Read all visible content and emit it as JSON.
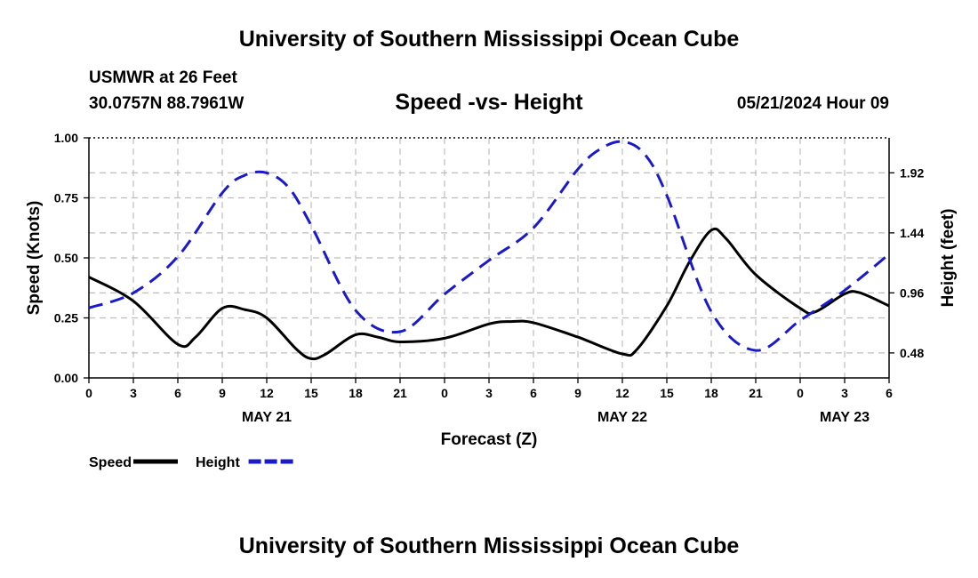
{
  "header": {
    "title": "University of Southern Mississippi Ocean Cube",
    "station": "USMWR at 26 Feet",
    "coordinates": "30.0757N  88.7961W",
    "subtitle": "Speed -vs- Height",
    "datetime": "05/21/2024 Hour 09"
  },
  "footer": {
    "title": "University of Southern Mississippi Ocean Cube"
  },
  "chart_data": {
    "type": "line",
    "title": "Speed -vs- Height",
    "xlabel": "Forecast (Z)",
    "ylabel_left": "Speed (Knots)",
    "ylabel_right": "Height (feet)",
    "x_hours_range": [
      0,
      54
    ],
    "x_tick_hours": [
      0,
      3,
      6,
      9,
      12,
      15,
      18,
      21,
      24,
      27,
      30,
      33,
      36,
      39,
      42,
      45,
      48,
      51,
      54
    ],
    "x_tick_labels": [
      "0",
      "3",
      "6",
      "9",
      "12",
      "15",
      "18",
      "21",
      "0",
      "3",
      "6",
      "9",
      "12",
      "15",
      "18",
      "21",
      "0",
      "3",
      "6"
    ],
    "date_labels": [
      {
        "hour": 12,
        "label": "MAY 21"
      },
      {
        "hour": 36,
        "label": "MAY 22"
      },
      {
        "hour": 51,
        "label": "MAY 23"
      }
    ],
    "ylim_left": [
      0,
      1
    ],
    "y_left_ticks": [
      {
        "value": 0.0,
        "label": "0.00"
      },
      {
        "value": 0.25,
        "label": "0.25"
      },
      {
        "value": 0.5,
        "label": "0.50"
      },
      {
        "value": 0.75,
        "label": "0.75"
      },
      {
        "value": 1.0,
        "label": "1.00"
      }
    ],
    "ylim_right": [
      0.28,
      2.2
    ],
    "y_right_ticks": [
      {
        "value": 0.48,
        "label": "0.48"
      },
      {
        "value": 0.96,
        "label": "0.96"
      },
      {
        "value": 1.44,
        "label": "1.44"
      },
      {
        "value": 1.92,
        "label": "1.92"
      }
    ],
    "grid": true,
    "legend_position": "bottom-left",
    "series": [
      {
        "name": "Speed",
        "axis": "left",
        "color": "#000000",
        "style": "solid",
        "x": [
          0,
          3,
          6,
          7.2,
          9,
          10.5,
          12,
          14,
          15,
          16,
          18,
          19.5,
          21,
          24,
          27,
          28.5,
          30,
          33,
          36,
          37,
          39,
          40.5,
          42,
          43,
          45,
          48,
          49,
          51,
          52,
          54
        ],
        "values": [
          0.42,
          0.32,
          0.14,
          0.17,
          0.29,
          0.285,
          0.25,
          0.12,
          0.08,
          0.1,
          0.18,
          0.17,
          0.15,
          0.165,
          0.225,
          0.235,
          0.23,
          0.17,
          0.1,
          0.12,
          0.3,
          0.48,
          0.615,
          0.58,
          0.43,
          0.29,
          0.275,
          0.35,
          0.355,
          0.3
        ]
      },
      {
        "name": "Height",
        "axis": "right",
        "color": "#1a1ac8",
        "style": "dashed",
        "x": [
          0,
          3,
          6,
          9,
          10.5,
          12,
          13.5,
          15,
          18,
          21,
          24,
          27,
          30,
          33,
          34.5,
          36,
          37.5,
          39,
          42,
          45,
          48,
          51,
          54
        ],
        "values": [
          0.84,
          0.96,
          1.25,
          1.76,
          1.9,
          1.92,
          1.8,
          1.5,
          0.82,
          0.65,
          0.95,
          1.22,
          1.48,
          1.95,
          2.11,
          2.17,
          2.07,
          1.74,
          0.81,
          0.5,
          0.74,
          0.98,
          1.27
        ]
      }
    ],
    "legend": [
      {
        "label": "Speed",
        "color": "#000000",
        "style": "solid"
      },
      {
        "label": "Height",
        "color": "#1a1ac8",
        "style": "dashed"
      }
    ]
  }
}
